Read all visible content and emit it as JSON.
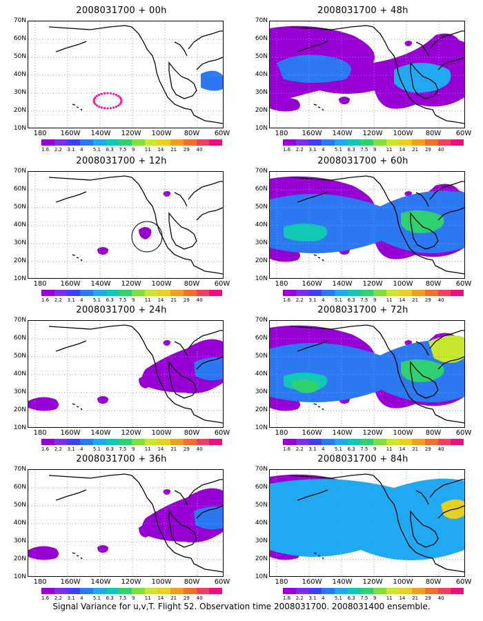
{
  "panels": [
    {
      "title": "2008031700 + 00h",
      "level": 0
    },
    {
      "title": "2008031700 + 48h",
      "level": 3
    },
    {
      "title": "2008031700 + 12h",
      "level": 1
    },
    {
      "title": "2008031700 + 60h",
      "level": 4
    },
    {
      "title": "2008031700 + 24h",
      "level": 2
    },
    {
      "title": "2008031700 + 72h",
      "level": 5
    },
    {
      "title": "2008031700 + 36h",
      "level": 2
    },
    {
      "title": "2008031700 + 84h",
      "level": 6
    }
  ],
  "y_ticks": [
    "70N",
    "60N",
    "50N",
    "40N",
    "30N",
    "20N",
    "10N"
  ],
  "x_ticks": [
    "180",
    "160W",
    "140W",
    "120W",
    "100W",
    "80W",
    "60W"
  ],
  "colorbar": {
    "labels": [
      "1.6",
      "2.2",
      "3.1",
      "4",
      "5.1",
      "6.3",
      "7.5",
      "9",
      "11",
      "14",
      "21",
      "29",
      "40",
      ""
    ],
    "colors": [
      "#9600d2",
      "#7a30e6",
      "#4040f0",
      "#2c78f0",
      "#20a8f0",
      "#10c8b4",
      "#30d070",
      "#80e040",
      "#c8e830",
      "#e8d020",
      "#f0a020",
      "#f07030",
      "#f04060",
      "#e8107a"
    ]
  },
  "caption": "Signal Variance for u,v,T. Flight 52. Observation time 2008031700. 2008031400 ensemble."
}
